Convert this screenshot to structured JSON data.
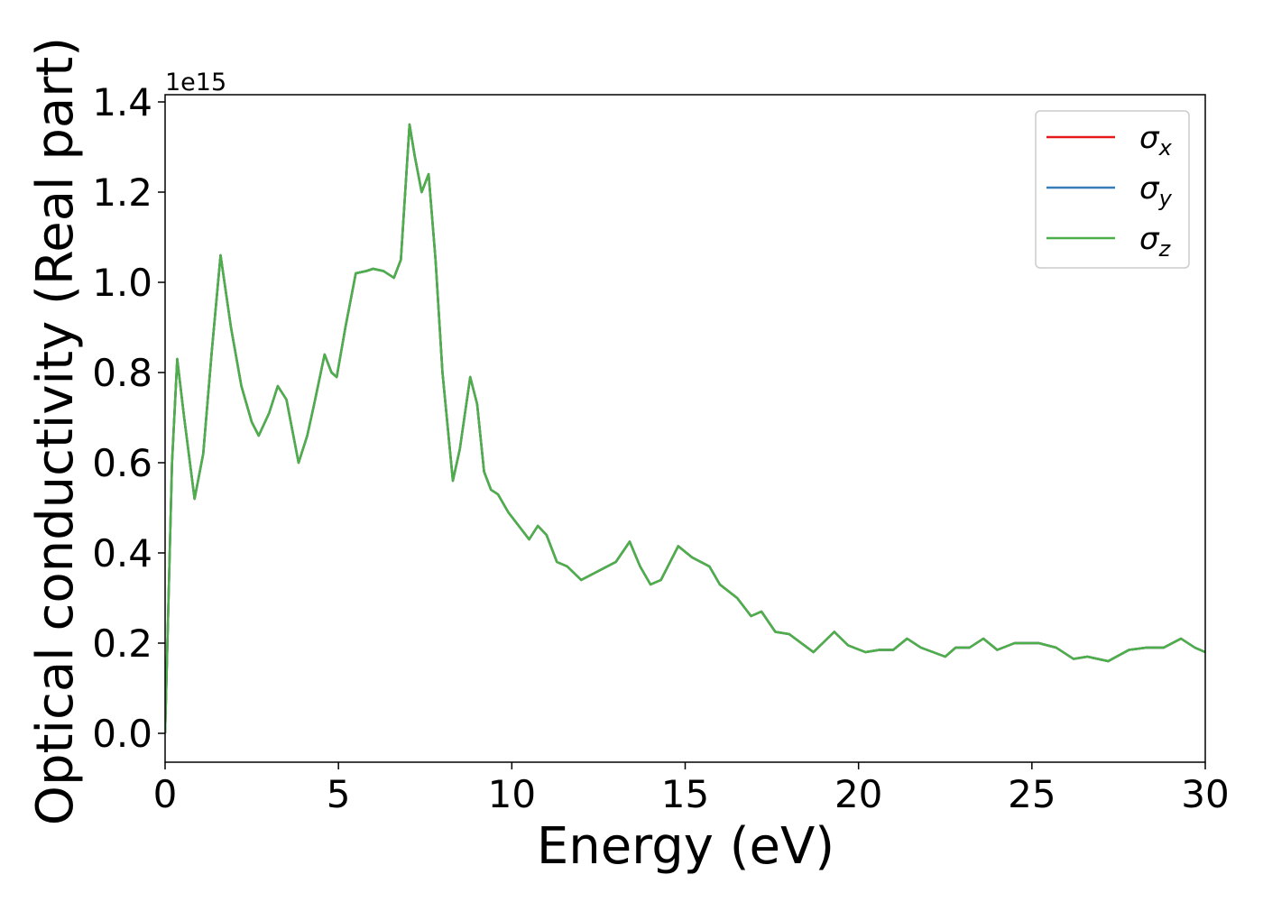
{
  "chart_data": {
    "type": "line",
    "x_label": "Energy (eV)",
    "y_label": "Optical conductivity (Real part)",
    "y_offset_label": "1e15",
    "xlim": [
      0,
      30
    ],
    "ylim": [
      -0.064,
      1.416
    ],
    "xticks": [
      0,
      5,
      10,
      15,
      20,
      25,
      30
    ],
    "yticks": [
      {
        "value": 0,
        "label": "0.0"
      },
      0.2,
      0.4,
      0.6,
      0.8,
      {
        "value": 1,
        "label": "1.0"
      },
      1.2,
      1.4
    ],
    "legend": "upper right",
    "grid": false,
    "x": [
      0,
      0.1,
      0.2,
      0.35,
      0.55,
      0.85,
      1.1,
      1.35,
      1.6,
      1.9,
      2.2,
      2.5,
      2.7,
      3.0,
      3.25,
      3.5,
      3.85,
      4.1,
      4.3,
      4.6,
      4.8,
      4.95,
      5.2,
      5.5,
      5.8,
      6.0,
      6.3,
      6.6,
      6.8,
      7.05,
      7.2,
      7.4,
      7.6,
      7.8,
      8.0,
      8.3,
      8.5,
      8.8,
      9.0,
      9.2,
      9.4,
      9.6,
      9.9,
      10.2,
      10.5,
      10.75,
      11.0,
      11.3,
      11.6,
      12.0,
      12.5,
      13.0,
      13.4,
      13.7,
      14.0,
      14.3,
      14.8,
      15.2,
      15.7,
      16.0,
      16.5,
      16.9,
      17.2,
      17.6,
      18.0,
      18.7,
      19.3,
      19.7,
      20.2,
      20.6,
      21.0,
      21.4,
      21.8,
      22.5,
      22.8,
      23.2,
      23.6,
      24.0,
      24.5,
      25.2,
      25.7,
      26.2,
      26.6,
      27.2,
      27.8,
      28.3,
      28.8,
      29.3,
      29.7,
      30.0
    ],
    "series": [
      {
        "name": "σx",
        "color": "#e41a1c",
        "values": [
          0,
          0.3,
          0.6,
          0.83,
          0.7,
          0.52,
          0.62,
          0.85,
          1.06,
          0.9,
          0.77,
          0.69,
          0.66,
          0.71,
          0.77,
          0.74,
          0.6,
          0.66,
          0.73,
          0.84,
          0.8,
          0.79,
          0.9,
          1.02,
          1.025,
          1.03,
          1.025,
          1.01,
          1.05,
          1.35,
          1.28,
          1.2,
          1.24,
          1.05,
          0.8,
          0.56,
          0.63,
          0.79,
          0.73,
          0.58,
          0.54,
          0.53,
          0.49,
          0.46,
          0.43,
          0.46,
          0.44,
          0.38,
          0.37,
          0.34,
          0.36,
          0.38,
          0.425,
          0.37,
          0.33,
          0.34,
          0.415,
          0.39,
          0.37,
          0.33,
          0.3,
          0.26,
          0.27,
          0.225,
          0.22,
          0.18,
          0.225,
          0.195,
          0.18,
          0.185,
          0.185,
          0.21,
          0.19,
          0.17,
          0.19,
          0.19,
          0.21,
          0.185,
          0.2,
          0.2,
          0.19,
          0.165,
          0.17,
          0.16,
          0.185,
          0.19,
          0.19,
          0.21,
          0.19,
          0.18
        ]
      },
      {
        "name": "σy",
        "color": "#377eb8",
        "values": [
          0,
          0.3,
          0.6,
          0.83,
          0.7,
          0.52,
          0.62,
          0.85,
          1.06,
          0.9,
          0.77,
          0.69,
          0.66,
          0.71,
          0.77,
          0.74,
          0.6,
          0.66,
          0.73,
          0.84,
          0.8,
          0.79,
          0.9,
          1.02,
          1.025,
          1.03,
          1.025,
          1.01,
          1.05,
          1.35,
          1.28,
          1.2,
          1.24,
          1.05,
          0.8,
          0.56,
          0.63,
          0.79,
          0.73,
          0.58,
          0.54,
          0.53,
          0.49,
          0.46,
          0.43,
          0.46,
          0.44,
          0.38,
          0.37,
          0.34,
          0.36,
          0.38,
          0.425,
          0.37,
          0.33,
          0.34,
          0.415,
          0.39,
          0.37,
          0.33,
          0.3,
          0.26,
          0.27,
          0.225,
          0.22,
          0.18,
          0.225,
          0.195,
          0.18,
          0.185,
          0.185,
          0.21,
          0.19,
          0.17,
          0.19,
          0.19,
          0.21,
          0.185,
          0.2,
          0.2,
          0.19,
          0.165,
          0.17,
          0.16,
          0.185,
          0.19,
          0.19,
          0.21,
          0.19,
          0.18
        ]
      },
      {
        "name": "σz",
        "color": "#4daf4a",
        "values": [
          0,
          0.3,
          0.6,
          0.83,
          0.7,
          0.52,
          0.62,
          0.85,
          1.06,
          0.9,
          0.77,
          0.69,
          0.66,
          0.71,
          0.77,
          0.74,
          0.6,
          0.66,
          0.73,
          0.84,
          0.8,
          0.79,
          0.9,
          1.02,
          1.025,
          1.03,
          1.025,
          1.01,
          1.05,
          1.35,
          1.28,
          1.2,
          1.24,
          1.05,
          0.8,
          0.56,
          0.63,
          0.79,
          0.73,
          0.58,
          0.54,
          0.53,
          0.49,
          0.46,
          0.43,
          0.46,
          0.44,
          0.38,
          0.37,
          0.34,
          0.36,
          0.38,
          0.425,
          0.37,
          0.33,
          0.34,
          0.415,
          0.39,
          0.37,
          0.33,
          0.3,
          0.26,
          0.27,
          0.225,
          0.22,
          0.18,
          0.225,
          0.195,
          0.18,
          0.185,
          0.185,
          0.21,
          0.19,
          0.17,
          0.19,
          0.19,
          0.21,
          0.185,
          0.2,
          0.2,
          0.19,
          0.165,
          0.17,
          0.16,
          0.185,
          0.19,
          0.19,
          0.21,
          0.19,
          0.18
        ]
      }
    ]
  }
}
